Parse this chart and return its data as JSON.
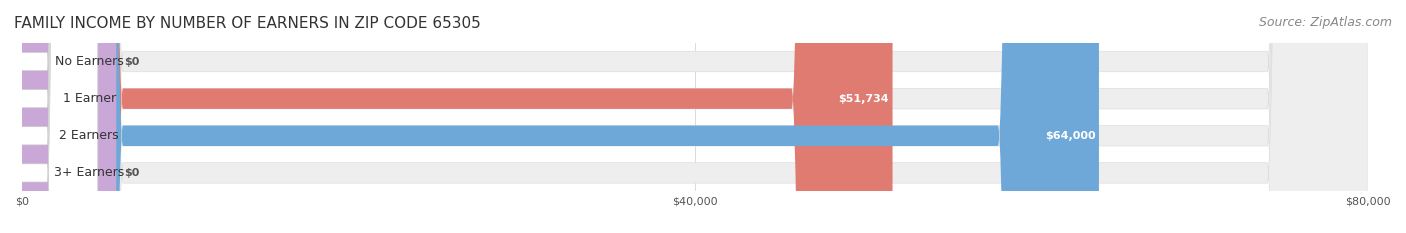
{
  "title": "FAMILY INCOME BY NUMBER OF EARNERS IN ZIP CODE 65305",
  "source": "Source: ZipAtlas.com",
  "categories": [
    "No Earners",
    "1 Earner",
    "2 Earners",
    "3+ Earners"
  ],
  "values": [
    0,
    51734,
    64000,
    0
  ],
  "bar_colors": [
    "#f5c89a",
    "#e07b72",
    "#6ea8d8",
    "#c9a8d8"
  ],
  "label_colors": [
    "#f5c89a",
    "#e07b72",
    "#6ea8d8",
    "#c9a8d8"
  ],
  "bar_bg_color": "#f0f0f0",
  "xlim": [
    0,
    80000
  ],
  "xticks": [
    0,
    40000,
    80000
  ],
  "xticklabels": [
    "$0",
    "$40,000",
    "$80,000"
  ],
  "bar_height": 0.55,
  "value_labels": [
    "$0",
    "$51,734",
    "$64,000",
    "$0"
  ],
  "background_color": "#ffffff",
  "title_fontsize": 11,
  "source_fontsize": 9,
  "label_fontsize": 9,
  "value_fontsize": 8
}
